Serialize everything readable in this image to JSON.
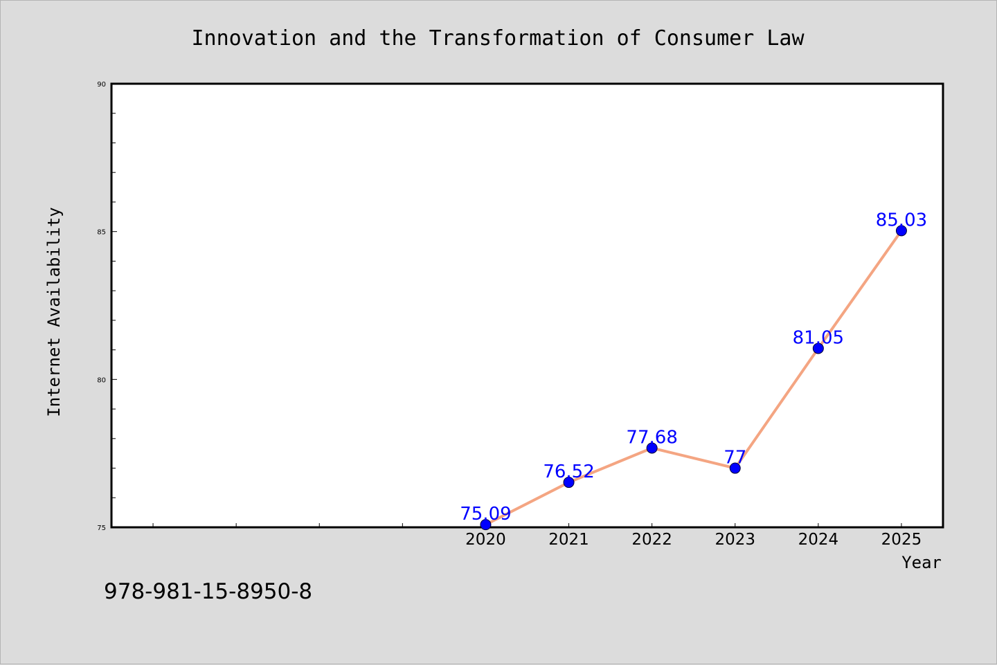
{
  "chart_data": {
    "type": "line",
    "title": "Innovation and the Transformation of Consumer Law",
    "xlabel": "Year",
    "ylabel": "Internet Availability",
    "x": [
      2020,
      2021,
      2022,
      2023,
      2024,
      2025
    ],
    "x_tick_labels": [
      "2020",
      "2021",
      "2022",
      "2023",
      "2024",
      "2025"
    ],
    "series": [
      {
        "values": [
          75.09,
          76.52,
          77.68,
          77,
          81.05,
          85.03
        ]
      }
    ],
    "data_labels": [
      "75.09",
      "76.52",
      "77.68",
      "77",
      "81.05",
      "85.03"
    ],
    "xlim": [
      2015.5,
      2025.5
    ],
    "ylim": [
      75,
      90
    ],
    "y_ticks": [
      75,
      80,
      85,
      90
    ],
    "y_tick_labels": [
      "75",
      "80",
      "85",
      "90"
    ],
    "grid": false,
    "colors": {
      "line": "#f4a582",
      "marker": "#0000ff",
      "data_label": "#0000ff",
      "background": "#dcdcdc",
      "plot_background": "#ffffff"
    }
  },
  "footer": {
    "isbn": "978-981-15-8950-8"
  }
}
